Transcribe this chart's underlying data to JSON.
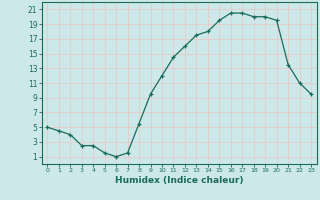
{
  "x": [
    0,
    1,
    2,
    3,
    4,
    5,
    6,
    7,
    8,
    9,
    10,
    11,
    12,
    13,
    14,
    15,
    16,
    17,
    18,
    19,
    20,
    21,
    22,
    23
  ],
  "y": [
    5,
    4.5,
    4,
    2.5,
    2.5,
    1.5,
    1,
    1.5,
    5.5,
    9.5,
    12,
    14.5,
    16,
    17.5,
    18,
    19.5,
    20.5,
    20.5,
    20,
    20,
    19.5,
    13.5,
    11,
    9.5
  ],
  "line_color": "#1a6b5a",
  "marker_color": "#1a6b5a",
  "bg_color": "#cce8e8",
  "grid_color": "#e8c8c8",
  "xlabel": "Humidex (Indice chaleur)",
  "xlim": [
    -0.5,
    23.5
  ],
  "ylim": [
    0,
    22
  ],
  "yticks": [
    1,
    3,
    5,
    7,
    9,
    11,
    13,
    15,
    17,
    19,
    21
  ],
  "xticks": [
    0,
    1,
    2,
    3,
    4,
    5,
    6,
    7,
    8,
    9,
    10,
    11,
    12,
    13,
    14,
    15,
    16,
    17,
    18,
    19,
    20,
    21,
    22,
    23
  ]
}
